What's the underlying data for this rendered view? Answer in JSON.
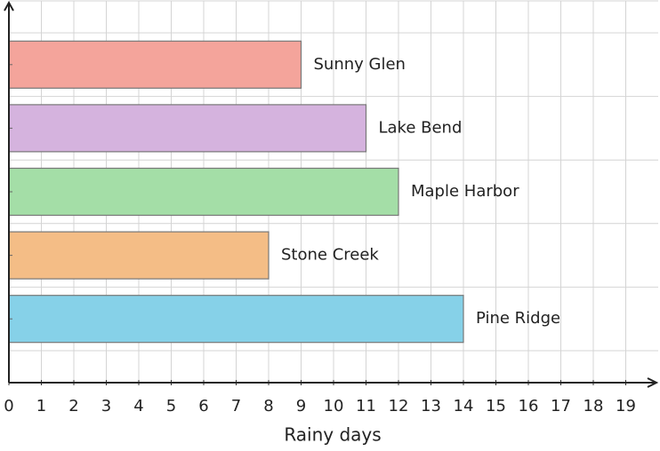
{
  "chart_data": {
    "type": "bar",
    "horizontal": true,
    "xlabel": "Rainy days",
    "categories": [
      "Sunny Glen",
      "Lake Bend",
      "Maple Harbor",
      "Stone Creek",
      "Pine Ridge"
    ],
    "values": [
      9,
      11,
      12,
      8,
      14
    ],
    "colors": [
      "#f4a49b",
      "#d5b3de",
      "#a4dea7",
      "#f4bd86",
      "#86d1e8"
    ],
    "xlim": [
      0,
      20
    ],
    "xticks": [
      0,
      1,
      2,
      3,
      4,
      5,
      6,
      7,
      8,
      9,
      10,
      11,
      12,
      13,
      14,
      15,
      16,
      17,
      18,
      19
    ],
    "grid": true
  }
}
